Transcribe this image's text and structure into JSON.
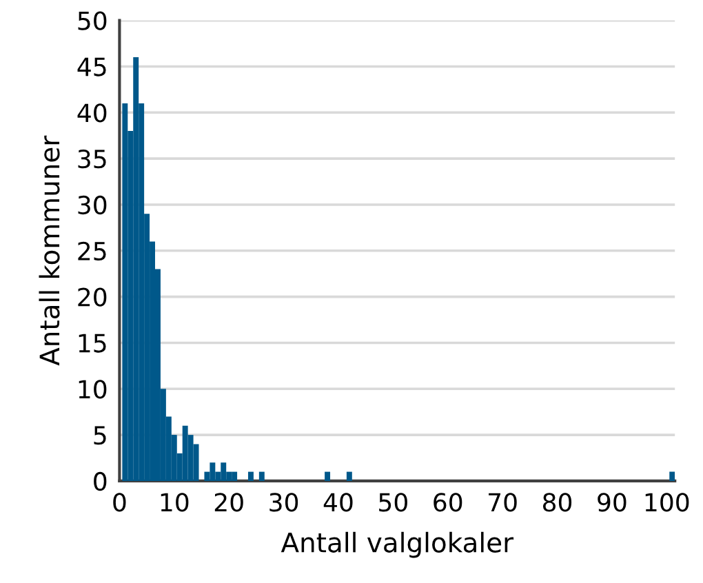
{
  "chart_data": {
    "type": "histogram",
    "xlabel": "Antall valglokaler",
    "ylabel": "Antall kommuner",
    "color": "#00588a",
    "bins": [
      0.5,
      1.5,
      2.5,
      3.5,
      4.5,
      5.5,
      6.5,
      7.5,
      8.5,
      9.5,
      10.5,
      11.5,
      12.5,
      13.5,
      14.5,
      15.5,
      16.5,
      17.5,
      18.5,
      19.5,
      20.5,
      21.5,
      22.5,
      23.5,
      24.5,
      25.5,
      26.5,
      27.5,
      28.5,
      29.5,
      30.5,
      31.5,
      32.5,
      33.5,
      34.5,
      35.5,
      36.5,
      37.5,
      38.5,
      39.5,
      40.5,
      41.5,
      42.5,
      43.5,
      44.5,
      45.5,
      46.5,
      47.5,
      48.5,
      49.5,
      50.5,
      51.5,
      52.5,
      53.5,
      54.5,
      55.5,
      56.5,
      57.5,
      58.5,
      59.5,
      60.5,
      61.5,
      62.5,
      63.5,
      64.5,
      65.5,
      66.5,
      67.5,
      68.5,
      69.5,
      70.5,
      71.5,
      72.5,
      73.5,
      74.5,
      75.5,
      76.5,
      77.5,
      78.5,
      79.5,
      80.5,
      81.5,
      82.5,
      83.5,
      84.5,
      85.5,
      86.5,
      87.5,
      88.5,
      89.5,
      90.5,
      91.5,
      92.5,
      93.5,
      94.5,
      95.5,
      96.5,
      97.5,
      98.5,
      99.5,
      100.5,
      101.5
    ],
    "values": [
      41,
      38,
      46,
      41,
      29,
      26,
      23,
      10,
      7,
      5,
      3,
      6,
      5,
      4,
      0,
      1,
      2,
      1,
      2,
      1,
      1,
      0,
      0,
      1,
      0,
      1,
      0,
      0,
      0,
      0,
      0,
      0,
      0,
      0,
      0,
      0,
      0,
      1,
      0,
      0,
      0,
      1,
      0,
      0,
      0,
      0,
      0,
      0,
      0,
      0,
      0,
      0,
      0,
      0,
      0,
      0,
      0,
      0,
      0,
      0,
      0,
      0,
      0,
      0,
      0,
      0,
      0,
      0,
      0,
      0,
      0,
      0,
      0,
      0,
      0,
      0,
      0,
      0,
      0,
      0,
      0,
      0,
      0,
      0,
      0,
      0,
      0,
      0,
      0,
      0,
      0,
      0,
      0,
      0,
      0,
      0,
      0,
      0,
      0,
      0,
      1
    ],
    "xlim": [
      0,
      101.5
    ],
    "xticks": [
      0,
      10,
      20,
      30,
      40,
      50,
      60,
      70,
      80,
      90,
      100
    ],
    "ylim": [
      0,
      50
    ],
    "yticks": [
      0,
      5,
      10,
      15,
      20,
      25,
      30,
      35,
      40,
      45,
      50
    ],
    "grid": "y"
  }
}
